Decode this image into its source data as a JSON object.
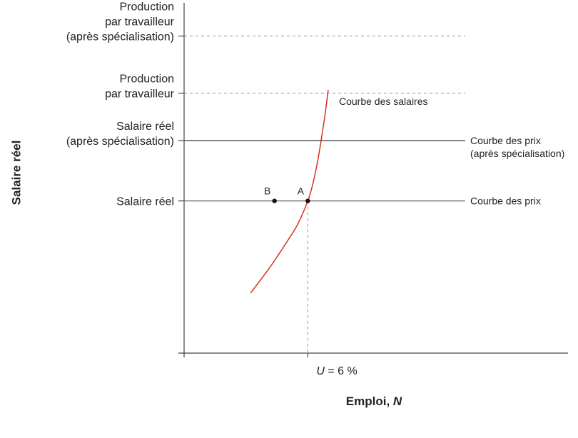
{
  "chart_data": {
    "type": "line",
    "title": "",
    "ylabel": "Salaire réel",
    "xlabel_text": "Emploi, ",
    "xlabel_var": "N",
    "xtick": {
      "var": "U",
      "text": " = 6 %"
    },
    "y_levels": [
      {
        "key": "prod_after",
        "lines": [
          "Production",
          "par travailleur",
          "(après spécialisation)"
        ],
        "value": 100,
        "style": "dashed"
      },
      {
        "key": "prod",
        "lines": [
          "Production",
          "par travailleur"
        ],
        "value": 82,
        "style": "dashed"
      },
      {
        "key": "wage_after",
        "lines": [
          "Salaire réel",
          "(après spécialisation)"
        ],
        "value": 67,
        "style": "solid"
      },
      {
        "key": "wage",
        "lines": [
          "Salaire réel"
        ],
        "value": 48,
        "style": "solid"
      }
    ],
    "series": [
      {
        "name": "Courbe des salaires",
        "color": "#d7301f",
        "points": [
          [
            14,
            19
          ],
          [
            18,
            27
          ],
          [
            22,
            36
          ],
          [
            24,
            41
          ],
          [
            26,
            48
          ],
          [
            27,
            53
          ],
          [
            28,
            60
          ],
          [
            28.8,
            67
          ],
          [
            29.6,
            75
          ],
          [
            30.3,
            83
          ]
        ]
      },
      {
        "name": "Courbe des prix (après spécialisation)",
        "lines": [
          "Courbe des prix",
          "(après spécialisation)"
        ],
        "color": "#333333",
        "y": 67
      },
      {
        "name": "Courbe des prix",
        "lines": [
          "Courbe des prix"
        ],
        "color": "#555555",
        "y": 48
      }
    ],
    "points": [
      {
        "label": "A",
        "x": 26,
        "y": 48
      },
      {
        "label": "B",
        "x": 19,
        "y": 48
      }
    ],
    "xlim": [
      0,
      60
    ],
    "ylim": [
      0,
      108
    ],
    "u_x": 26,
    "wage_curve_label": "Courbe des salaires",
    "colors": {
      "axis": "#444444",
      "dashed": "#8a8f9a",
      "curve": "#d7301f",
      "text": "#222222"
    }
  }
}
